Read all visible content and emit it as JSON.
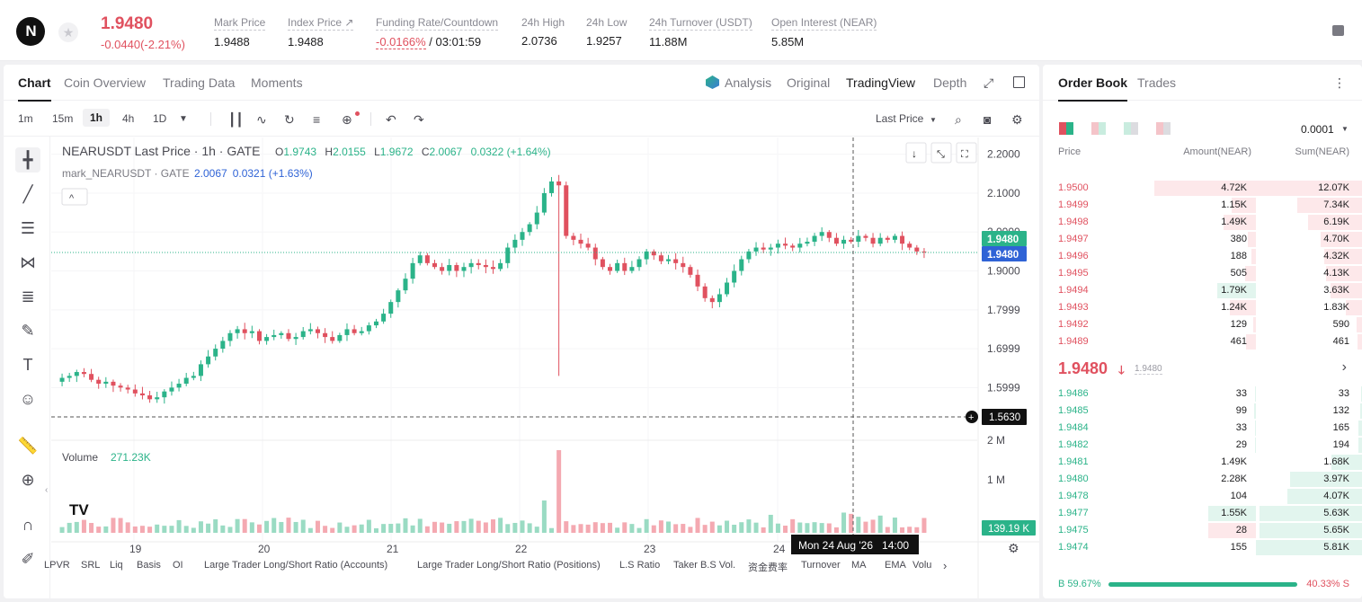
{
  "header": {
    "logo_letter": "N",
    "star_icon": "star-icon",
    "last_price": "1.9480",
    "price_change": "-0.0440(-2.21%)",
    "stats": [
      {
        "label": "Mark Price",
        "value": "1.9488"
      },
      {
        "label": "Index Price ↗",
        "value": "1.9488"
      },
      {
        "label": "Funding Rate/Countdown",
        "rate": "-0.0166%",
        "countdown": "/ 03:01:59"
      },
      {
        "label": "24h High",
        "value": "2.0736"
      },
      {
        "label": "24h Low",
        "value": "1.9257"
      },
      {
        "label": "24h Turnover (USDT)",
        "value": "11.88M"
      },
      {
        "label": "Open Interest (NEAR)",
        "value": "5.85M"
      }
    ]
  },
  "chart_tabs": [
    "Chart",
    "Coin Overview",
    "Trading Data",
    "Moments"
  ],
  "view_tabs": [
    "Analysis",
    "Original",
    "TradingView",
    "Depth"
  ],
  "timeframes": [
    "1m",
    "15m",
    "1h",
    "4h",
    "1D"
  ],
  "active_timeframe": "1h",
  "price_type": "Last Price",
  "legend": {
    "title": "NEARUSDT Last Price · 1h · GATE",
    "o_label": "O",
    "o": "1.9743",
    "h_label": "H",
    "h": "2.0155",
    "l_label": "L",
    "l": "1.9672",
    "c_label": "C",
    "c": "2.0067",
    "chg": "0.0322 (+1.64%)",
    "mark_label": "mark_NEARUSDT · GATE",
    "mark_val": "2.0067",
    "mark_chg": "0.0321 (+1.63%)"
  },
  "volume_label": "Volume",
  "volume_value": "271.23K",
  "price_axis": [
    "2.2000",
    "2.1000",
    "2.0000",
    "1.9000",
    "1.7999",
    "1.6999",
    "1.5999"
  ],
  "vol_axis": [
    "2 M",
    "1 M"
  ],
  "price_tags": {
    "last": "1.9480",
    "mark": "1.9480",
    "cross": "1.5630",
    "vol": "139.19 K"
  },
  "date_axis": [
    "19",
    "20",
    "21",
    "22",
    "23",
    "24"
  ],
  "crosshair_label": "Mon 24 Aug '26   14:00",
  "indicators": [
    "LPVR",
    "SRL",
    "Liq",
    "Basis",
    "OI",
    "Large Trader Long/Short Ratio (Accounts)",
    "Large Trader Long/Short Ratio (Positions)",
    "L.S Ratio",
    "Taker B.S Vol.",
    "资金费率",
    "Turnover",
    "MA",
    "EMA",
    "Volu"
  ],
  "chart_data": {
    "type": "candlestick",
    "title": "NEARUSDT Last Price · 1h · GATE",
    "ylim": [
      1.55,
      2.22
    ],
    "x_ticks": [
      "19",
      "20",
      "21",
      "22",
      "23",
      "24"
    ],
    "y_ticks": [
      2.2,
      2.1,
      2.0,
      1.9,
      1.7999,
      1.6999,
      1.5999
    ],
    "close_path": [
      1.625,
      1.63,
      1.64,
      1.635,
      1.62,
      1.61,
      1.615,
      1.605,
      1.6,
      1.595,
      1.585,
      1.58,
      1.57,
      1.575,
      1.59,
      1.6,
      1.61,
      1.625,
      1.63,
      1.66,
      1.68,
      1.7,
      1.72,
      1.74,
      1.75,
      1.74,
      1.745,
      1.72,
      1.73,
      1.735,
      1.74,
      1.725,
      1.73,
      1.745,
      1.75,
      1.74,
      1.73,
      1.72,
      1.735,
      1.75,
      1.74,
      1.745,
      1.76,
      1.77,
      1.79,
      1.82,
      1.85,
      1.88,
      1.92,
      1.94,
      1.92,
      1.91,
      1.9,
      1.915,
      1.9,
      1.91,
      1.92,
      1.915,
      1.91,
      1.905,
      1.92,
      1.96,
      1.98,
      2.0,
      2.02,
      2.05,
      2.1,
      2.13,
      2.12,
      1.99,
      1.98,
      1.97,
      1.96,
      1.93,
      1.91,
      1.9,
      1.92,
      1.9,
      1.91,
      1.93,
      1.95,
      1.94,
      1.925,
      1.93,
      1.92,
      1.91,
      1.89,
      1.86,
      1.83,
      1.82,
      1.84,
      1.87,
      1.9,
      1.93,
      1.95,
      1.96,
      1.955,
      1.96,
      1.97,
      1.965,
      1.96,
      1.97,
      1.975,
      1.99,
      2.0,
      1.985,
      1.97,
      1.98,
      1.975,
      1.99,
      1.985,
      1.97,
      1.985,
      1.98,
      1.99,
      1.97,
      1.96,
      1.95,
      1.948
    ],
    "spike_low": 1.63,
    "spike_index": 68,
    "volume_peak": "2 M"
  },
  "orderbook": {
    "tabs": [
      "Order Book",
      "Trades"
    ],
    "precision": "0.0001",
    "cols": [
      "Price",
      "Amount(NEAR)",
      "Sum(NEAR)"
    ],
    "asks": [
      {
        "p": "1.9500",
        "a": "4.72K",
        "s": "12.07K",
        "af": 1.0,
        "sf": 1.0
      },
      {
        "p": "1.9499",
        "a": "1.15K",
        "s": "7.34K",
        "af": 0.24,
        "sf": 0.61
      },
      {
        "p": "1.9498",
        "a": "1.49K",
        "s": "6.19K",
        "af": 0.32,
        "sf": 0.51
      },
      {
        "p": "1.9497",
        "a": "380",
        "s": "4.70K",
        "af": 0.08,
        "sf": 0.39
      },
      {
        "p": "1.9496",
        "a": "188",
        "s": "4.32K",
        "af": 0.04,
        "sf": 0.36
      },
      {
        "p": "1.9495",
        "a": "505",
        "s": "4.13K",
        "af": 0.11,
        "sf": 0.34
      },
      {
        "p": "1.9494",
        "a": "1.79K",
        "s": "3.63K",
        "af": 0.38,
        "sf": 0.3,
        "green": true
      },
      {
        "p": "1.9493",
        "a": "1.24K",
        "s": "1.83K",
        "af": 0.26,
        "sf": 0.15
      },
      {
        "p": "1.9492",
        "a": "129",
        "s": "590",
        "af": 0.03,
        "sf": 0.05
      },
      {
        "p": "1.9489",
        "a": "461",
        "s": "461",
        "af": 0.1,
        "sf": 0.04
      }
    ],
    "mid_price": "1.9480",
    "mid_mark": "1.9480",
    "bids": [
      {
        "p": "1.9486",
        "a": "33",
        "s": "33",
        "af": 0.01,
        "sf": 0.01
      },
      {
        "p": "1.9485",
        "a": "99",
        "s": "132",
        "af": 0.02,
        "sf": 0.02
      },
      {
        "p": "1.9484",
        "a": "33",
        "s": "165",
        "af": 0.01,
        "sf": 0.03
      },
      {
        "p": "1.9482",
        "a": "29",
        "s": "194",
        "af": 0.01,
        "sf": 0.03
      },
      {
        "p": "1.9481",
        "a": "1.49K",
        "s": "1.68K",
        "af": 0.0,
        "sf": 0.29
      },
      {
        "p": "1.9480",
        "a": "2.28K",
        "s": "3.97K",
        "af": 0.0,
        "sf": 0.68
      },
      {
        "p": "1.9478",
        "a": "104",
        "s": "4.07K",
        "af": 0.0,
        "sf": 0.7
      },
      {
        "p": "1.9477",
        "a": "1.55K",
        "s": "5.63K",
        "af": 0.47,
        "sf": 0.97
      },
      {
        "p": "1.9475",
        "a": "28",
        "s": "5.65K",
        "af": 0.47,
        "sf": 0.97,
        "red": true
      },
      {
        "p": "1.9474",
        "a": "155",
        "s": "5.81K",
        "af": 0.0,
        "sf": 1.0
      }
    ],
    "buy_ratio": "59.67%",
    "sell_ratio": "40.33%",
    "buy_label": "B",
    "sell_label": "S"
  }
}
